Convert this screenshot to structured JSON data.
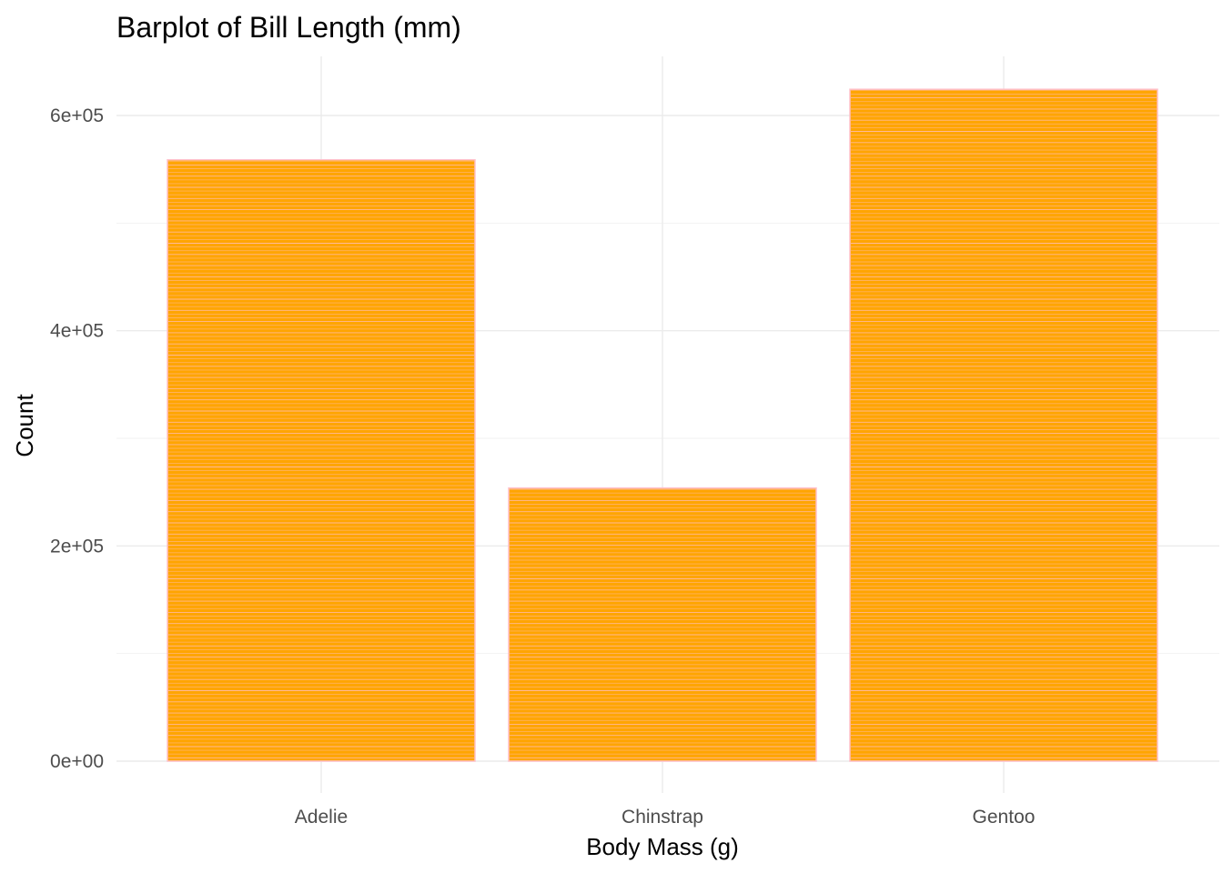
{
  "chart_data": {
    "type": "bar",
    "title": "Barplot of Bill Length (mm)",
    "xlabel": "Body Mass (g)",
    "ylabel": "Count",
    "categories": [
      "Adelie",
      "Chinstrap",
      "Gentoo"
    ],
    "values": [
      558800,
      253850,
      624350
    ],
    "ylim": [
      0,
      650000
    ],
    "yticks": [
      0,
      200000,
      400000,
      600000
    ],
    "ytick_labels": [
      "0e+00",
      "2e+05",
      "4e+05",
      "6e+05"
    ],
    "grid": true,
    "legend": "none",
    "colors": {
      "bar_fill": "#FFA500",
      "bar_outline": "#FFC0CB",
      "grid": "#EBEBEB",
      "tick_text": "#4D4D4D"
    }
  }
}
